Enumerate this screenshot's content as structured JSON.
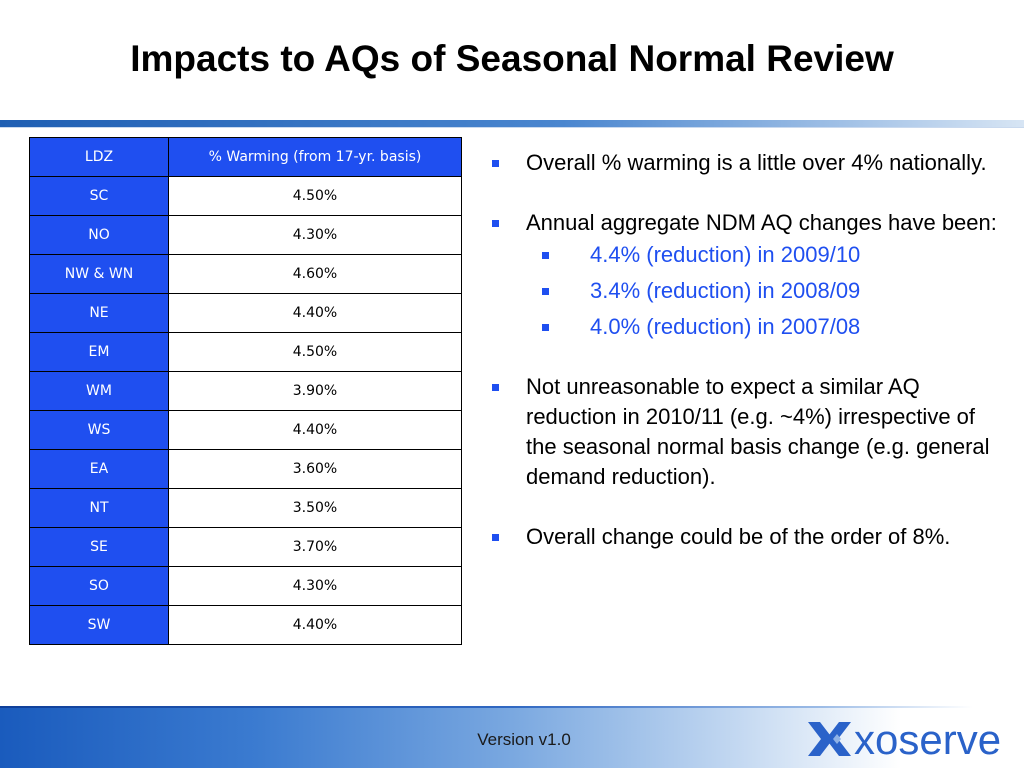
{
  "title": "Impacts to AQs of Seasonal Normal Review",
  "table": {
    "headers": [
      "LDZ",
      "% Warming (from 17-yr. basis)"
    ],
    "rows": [
      [
        "SC",
        "4.50%"
      ],
      [
        "NO",
        "4.30%"
      ],
      [
        "NW & WN",
        "4.60%"
      ],
      [
        "NE",
        "4.40%"
      ],
      [
        "EM",
        "4.50%"
      ],
      [
        "WM",
        "3.90%"
      ],
      [
        "WS",
        "4.40%"
      ],
      [
        "EA",
        "3.60%"
      ],
      [
        "NT",
        "3.50%"
      ],
      [
        "SE",
        "3.70%"
      ],
      [
        "SO",
        "4.30%"
      ],
      [
        "SW",
        "4.40%"
      ]
    ]
  },
  "bullets": [
    {
      "text": "Overall % warming is a little over 4% nationally."
    },
    {
      "text": "Annual aggregate NDM AQ changes have been:",
      "sub": [
        "4.4% (reduction) in 2009/10",
        "3.4% (reduction) in 2008/09",
        "4.0% (reduction) in 2007/08"
      ]
    },
    {
      "text": "Not unreasonable to expect a similar AQ reduction in 2010/11 (e.g. ~4%) irrespective of the seasonal  normal basis change (e.g. general demand reduction)."
    },
    {
      "text": "Overall change could be of the order of 8%."
    }
  ],
  "footer": {
    "version": "Version v1.0",
    "logo_text": "xoserve"
  },
  "colors": {
    "table_header_blue": "#1f4ff0",
    "sub_bullet_blue": "#1f4ff0",
    "logo_blue": "#2a62c9"
  }
}
